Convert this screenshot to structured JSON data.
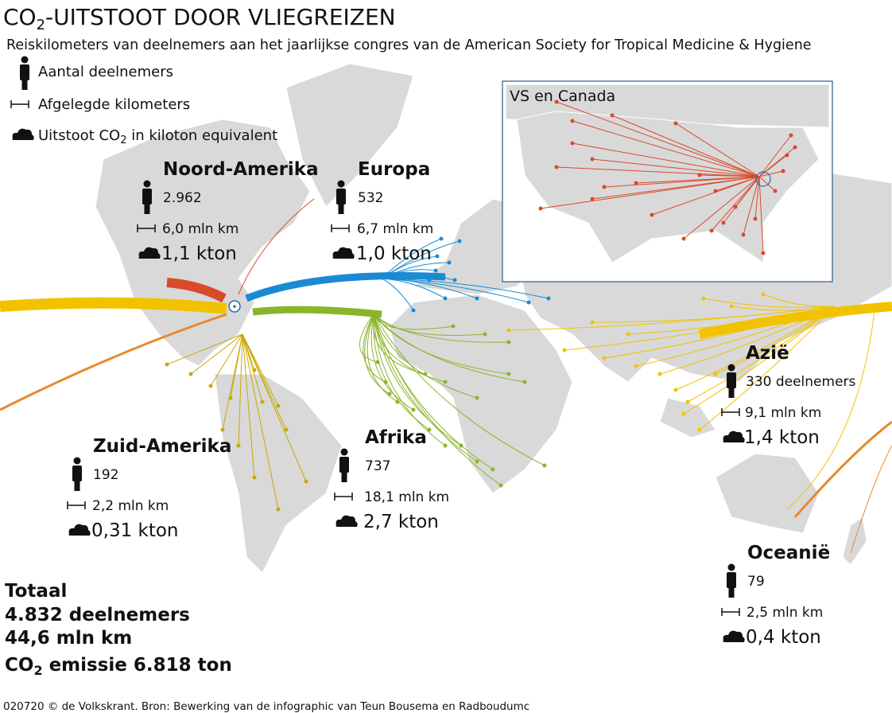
{
  "title": {
    "main": "CO",
    "sub": "2",
    "rest": "-UITSTOOT DOOR VLIEGREIZEN"
  },
  "subtitle": "Reiskilometers van deelnemers aan het jaarlijkse congres van de American Society for Tropical Medicine & Hygiene",
  "legend": {
    "participants": "Aantal deelnemers",
    "distance": "Afgelegde kilometers",
    "emission": [
      "Uitstoot CO",
      "2",
      " in kiloton equivalent"
    ]
  },
  "inset": {
    "title": "VS en Canada"
  },
  "regions": [
    {
      "name": "Noord-Amerika",
      "participants": "2.962",
      "distance": "6,0 mln km",
      "emission": "1,1 kton"
    },
    {
      "name": "Europa",
      "participants": "532",
      "distance": "6,7 mln km",
      "emission": "1,0 kton"
    },
    {
      "name": "Zuid-Amerika",
      "participants": "192",
      "distance": "2,2  mln km",
      "emission": "0,31 kton"
    },
    {
      "name": "Afrika",
      "participants": "737",
      "distance": "18,1  mln km",
      "emission": "2,7 kton"
    },
    {
      "name": "Azië",
      "participants": "330 deelnemers",
      "distance": "9,1 mln km",
      "emission": "1,4 kton"
    },
    {
      "name": "Oceanië",
      "participants": "79",
      "distance": "2,5 mln km",
      "emission": "0,4 kton"
    }
  ],
  "totals": {
    "heading": "Totaal",
    "participants": "4.832 deelnemers",
    "distance": "44,6 mln km",
    "emission": [
      "CO",
      "2",
      " emissie 6.818 ton"
    ]
  },
  "footer": "020720 © de Volkskrant. Bron: Bewerking van de infographic van Teun Bousema en Radboudumc"
}
